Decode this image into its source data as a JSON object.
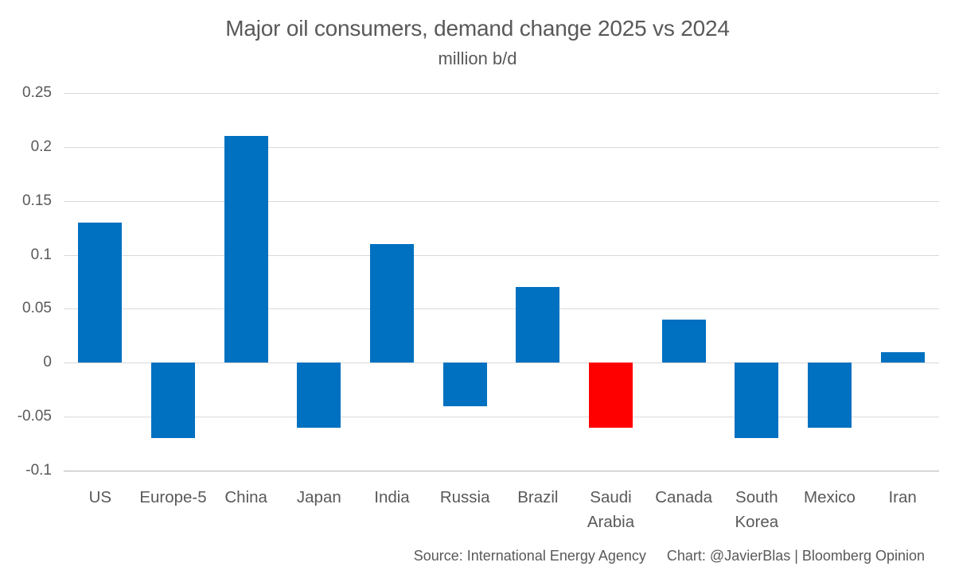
{
  "chart_data": {
    "type": "bar",
    "title": "Major oil consumers, demand change 2025 vs 2024",
    "subtitle": "million b/d",
    "categories": [
      "US",
      "Europe-5",
      "China",
      "Japan",
      "India",
      "Russia",
      "Brazil",
      "Saudi\nArabia",
      "Canada",
      "South\nKorea",
      "Mexico",
      "Iran"
    ],
    "values": [
      0.13,
      -0.07,
      0.21,
      -0.06,
      0.11,
      -0.04,
      0.07,
      -0.06,
      0.04,
      -0.07,
      -0.06,
      0.01
    ],
    "highlight_index": 7,
    "bar_color": "#0070C0",
    "highlight_color": "#FF0000",
    "ylim": [
      -0.1,
      0.25
    ],
    "yticks": [
      0.25,
      0.2,
      0.15,
      0.1,
      0.05,
      0,
      -0.05,
      -0.1
    ],
    "ytick_labels": [
      "0.25",
      "0.2",
      "0.15",
      "0.1",
      "0.05",
      "0",
      "-0.05",
      "-0.1"
    ],
    "grid": true,
    "legend": false,
    "text_color": "#595959",
    "gridline_color": "#D9D9D9",
    "xlabel": "",
    "ylabel": ""
  },
  "footer": {
    "source": "Source: International Energy Agency",
    "credit": "Chart: @JavierBlas | Bloomberg Opinion"
  }
}
